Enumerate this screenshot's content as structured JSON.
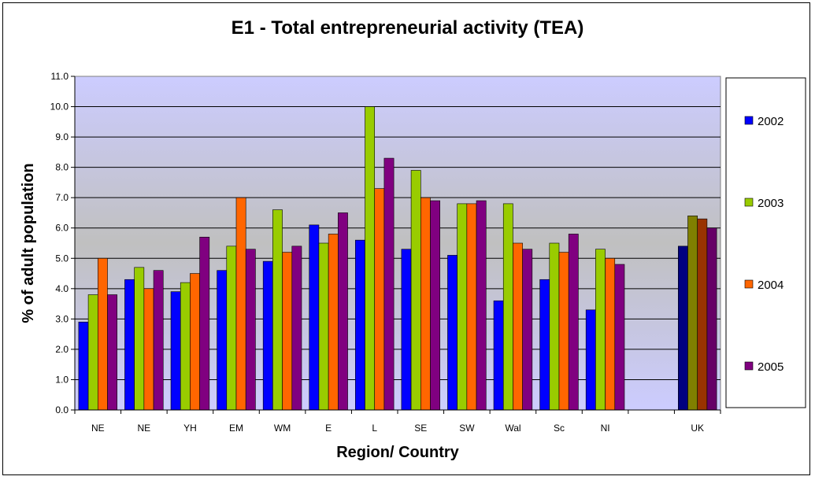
{
  "chart_data": {
    "type": "bar",
    "title": "E1 - Total entrepreneurial activity (TEA)",
    "xlabel": "Region/ Country",
    "ylabel": "% of adult population",
    "ylim": [
      0,
      11
    ],
    "y_ticks": [
      "0.0",
      "1.0",
      "2.0",
      "3.0",
      "4.0",
      "5.0",
      "6.0",
      "7.0",
      "8.0",
      "9.0",
      "10.0",
      "11.0"
    ],
    "categories": [
      "NE",
      "NE",
      "YH",
      "EM",
      "WM",
      "E",
      "L",
      "SE",
      "SW",
      "Wal",
      "Sc",
      "NI",
      "",
      "UK"
    ],
    "series": [
      {
        "name": "2002",
        "color": "#0000FF",
        "uk_color": "#000080",
        "values": [
          2.9,
          4.3,
          3.9,
          4.6,
          4.9,
          6.1,
          5.6,
          5.3,
          5.1,
          3.6,
          4.3,
          3.3,
          null,
          5.4
        ]
      },
      {
        "name": "2003",
        "color": "#99CC00",
        "uk_color": "#808000",
        "values": [
          3.8,
          4.7,
          4.2,
          5.4,
          6.6,
          5.5,
          10.0,
          7.9,
          6.8,
          6.8,
          5.5,
          5.3,
          null,
          6.4
        ]
      },
      {
        "name": "2004",
        "color": "#FF6600",
        "uk_color": "#993300",
        "values": [
          5.0,
          4.0,
          4.5,
          7.0,
          5.2,
          5.8,
          7.3,
          7.0,
          6.8,
          5.5,
          5.2,
          5.0,
          null,
          6.3
        ]
      },
      {
        "name": "2005",
        "color": "#800080",
        "uk_color": "#660066",
        "values": [
          3.8,
          4.6,
          5.7,
          5.3,
          5.4,
          6.5,
          8.3,
          6.9,
          6.9,
          5.3,
          5.8,
          4.8,
          null,
          6.0
        ]
      }
    ],
    "grid": true,
    "legend_position": "right"
  }
}
